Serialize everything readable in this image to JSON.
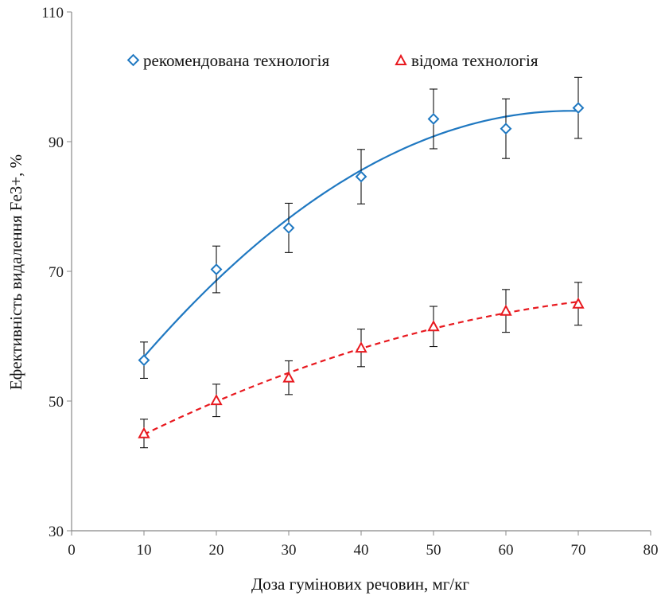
{
  "chart_data": {
    "type": "scatter",
    "xlabel": "Доза гумінових речовин, мг/кг",
    "ylabel": "Ефективність видалення Fe3+, %",
    "xlim": [
      0,
      80
    ],
    "ylim": [
      30,
      110
    ],
    "xticks": [
      0,
      10,
      20,
      30,
      40,
      50,
      60,
      70,
      80
    ],
    "yticks": [
      30,
      50,
      70,
      90,
      110
    ],
    "grid": false,
    "legend_position": "top",
    "series": [
      {
        "name": "рекомендована технологія",
        "marker": "diamond",
        "color": "#1f78c1",
        "trendline": "polynomial",
        "trend_style": "solid",
        "x": [
          10,
          20,
          30,
          40,
          50,
          60,
          70
        ],
        "y": [
          56.3,
          70.3,
          76.7,
          84.6,
          93.5,
          92.0,
          95.2
        ],
        "error": [
          2.8,
          3.6,
          3.8,
          4.2,
          4.6,
          4.6,
          4.7
        ]
      },
      {
        "name": "відома технологія",
        "marker": "triangle",
        "color": "#e8191f",
        "trendline": "polynomial",
        "trend_style": "dashed",
        "x": [
          10,
          20,
          30,
          40,
          50,
          60,
          70
        ],
        "y": [
          45.0,
          50.1,
          53.6,
          58.2,
          61.5,
          63.9,
          65.0
        ],
        "error": [
          2.2,
          2.5,
          2.6,
          2.9,
          3.1,
          3.3,
          3.3
        ]
      }
    ]
  }
}
